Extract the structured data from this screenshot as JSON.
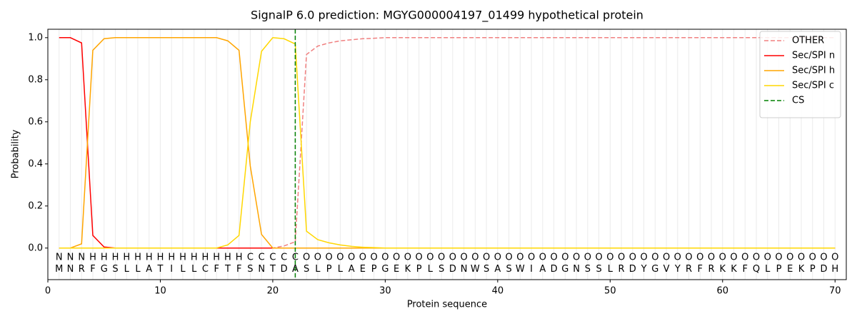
{
  "chart_data": {
    "type": "line",
    "title": "SignalP 6.0 prediction: MGYG000004197_01499 hypothetical protein",
    "xlabel": "Protein sequence",
    "ylabel": "Probability",
    "x": [
      1,
      2,
      3,
      4,
      5,
      6,
      7,
      8,
      9,
      10,
      11,
      12,
      13,
      14,
      15,
      16,
      17,
      18,
      19,
      20,
      21,
      22,
      23,
      24,
      25,
      26,
      27,
      28,
      29,
      30,
      31,
      32,
      33,
      34,
      35,
      36,
      37,
      38,
      39,
      40,
      41,
      42,
      43,
      44,
      45,
      46,
      47,
      48,
      49,
      50,
      51,
      52,
      53,
      54,
      55,
      56,
      57,
      58,
      59,
      60,
      61,
      62,
      63,
      64,
      65,
      66,
      67,
      68,
      69,
      70
    ],
    "sequence": [
      "M",
      "N",
      "R",
      "F",
      "G",
      "S",
      "L",
      "L",
      "A",
      "T",
      "I",
      "L",
      "L",
      "C",
      "F",
      "T",
      "F",
      "S",
      "N",
      "T",
      "D",
      "A",
      "S",
      "L",
      "P",
      "L",
      "A",
      "E",
      "P",
      "G",
      "E",
      "K",
      "P",
      "L",
      "S",
      "D",
      "N",
      "W",
      "S",
      "A",
      "S",
      "W",
      "I",
      "A",
      "D",
      "G",
      "N",
      "S",
      "S",
      "L",
      "R",
      "D",
      "Y",
      "G",
      "V",
      "Y",
      "R",
      "F",
      "R",
      "K",
      "K",
      "F",
      "Q",
      "L",
      "P",
      "E",
      "K",
      "P",
      "D",
      "H"
    ],
    "labels": [
      "N",
      "N",
      "N",
      "H",
      "H",
      "H",
      "H",
      "H",
      "H",
      "H",
      "H",
      "H",
      "H",
      "H",
      "H",
      "H",
      "H",
      "C",
      "C",
      "C",
      "C",
      "C",
      "O",
      "O",
      "O",
      "O",
      "O",
      "O",
      "O",
      "O",
      "O",
      "O",
      "O",
      "O",
      "O",
      "O",
      "O",
      "O",
      "O",
      "O",
      "O",
      "O",
      "O",
      "O",
      "O",
      "O",
      "O",
      "O",
      "O",
      "O",
      "O",
      "O",
      "O",
      "O",
      "O",
      "O",
      "O",
      "O",
      "O",
      "O",
      "O",
      "O",
      "O",
      "O",
      "O",
      "O",
      "O",
      "O",
      "O",
      "O"
    ],
    "label_colors": {
      "N": "#ff0000",
      "H": "#ffa500",
      "C": "#ffd700",
      "O": "#808080"
    },
    "series": [
      {
        "name": "OTHER",
        "color": "#f08080",
        "dashed": true,
        "values": [
          0,
          0,
          0,
          0,
          0,
          0,
          0,
          0,
          0,
          0,
          0,
          0,
          0,
          0,
          0,
          0,
          0,
          0,
          0,
          0,
          0.01,
          0.03,
          0.92,
          0.96,
          0.975,
          0.985,
          0.99,
          0.995,
          0.997,
          1,
          1,
          1,
          1,
          1,
          1,
          1,
          1,
          1,
          1,
          1,
          1,
          1,
          1,
          1,
          1,
          1,
          1,
          1,
          1,
          1,
          1,
          1,
          1,
          1,
          1,
          1,
          1,
          1,
          1,
          1,
          1,
          1,
          1,
          1,
          1,
          1,
          1,
          1,
          1,
          1
        ]
      },
      {
        "name": "Sec/SPI n",
        "color": "#ff0000",
        "dashed": false,
        "values": [
          1,
          1,
          0.975,
          0.06,
          0.005,
          0,
          0,
          0,
          0,
          0,
          0,
          0,
          0,
          0,
          0,
          0,
          0,
          0,
          0,
          0,
          0,
          0,
          0,
          0,
          0,
          0,
          0,
          0,
          0,
          0,
          0,
          0,
          0,
          0,
          0,
          0,
          0,
          0,
          0,
          0,
          0,
          0,
          0,
          0,
          0,
          0,
          0,
          0,
          0,
          0,
          0,
          0,
          0,
          0,
          0,
          0,
          0,
          0,
          0,
          0,
          0,
          0,
          0,
          0,
          0,
          0,
          0,
          0,
          0,
          0
        ]
      },
      {
        "name": "Sec/SPI h",
        "color": "#ffa500",
        "dashed": false,
        "values": [
          0,
          0,
          0.02,
          0.94,
          0.995,
          1,
          1,
          1,
          1,
          1,
          1,
          1,
          1,
          1,
          1,
          0.985,
          0.94,
          0.39,
          0.065,
          0,
          0,
          0,
          0,
          0,
          0,
          0,
          0,
          0,
          0,
          0,
          0,
          0,
          0,
          0,
          0,
          0,
          0,
          0,
          0,
          0,
          0,
          0,
          0,
          0,
          0,
          0,
          0,
          0,
          0,
          0,
          0,
          0,
          0,
          0,
          0,
          0,
          0,
          0,
          0,
          0,
          0,
          0,
          0,
          0,
          0,
          0,
          0,
          0,
          0,
          0
        ]
      },
      {
        "name": "Sec/SPI c",
        "color": "#ffd700",
        "dashed": false,
        "values": [
          0,
          0,
          0,
          0,
          0,
          0,
          0,
          0,
          0,
          0,
          0,
          0,
          0,
          0,
          0,
          0.015,
          0.06,
          0.6,
          0.935,
          1,
          0.995,
          0.97,
          0.08,
          0.04,
          0.025,
          0.015,
          0.008,
          0.004,
          0.002,
          0,
          0,
          0,
          0,
          0,
          0,
          0,
          0,
          0,
          0,
          0,
          0,
          0,
          0,
          0,
          0,
          0,
          0,
          0,
          0,
          0,
          0,
          0,
          0,
          0,
          0,
          0,
          0,
          0,
          0,
          0,
          0,
          0,
          0,
          0,
          0,
          0,
          0,
          0,
          0,
          0
        ]
      }
    ],
    "cs": {
      "name": "CS",
      "x": 22,
      "color": "#008000"
    },
    "xlim": [
      0,
      71
    ],
    "ylim": [
      -0.15,
      1.04
    ],
    "xticks": [
      0,
      10,
      20,
      30,
      40,
      50,
      60,
      70
    ],
    "yticks": [
      {
        "value": 0,
        "label": "0.0"
      },
      0.2,
      0.4,
      0.6,
      0.8,
      {
        "value": 1,
        "label": "1.0"
      }
    ],
    "legend": "upper right"
  }
}
